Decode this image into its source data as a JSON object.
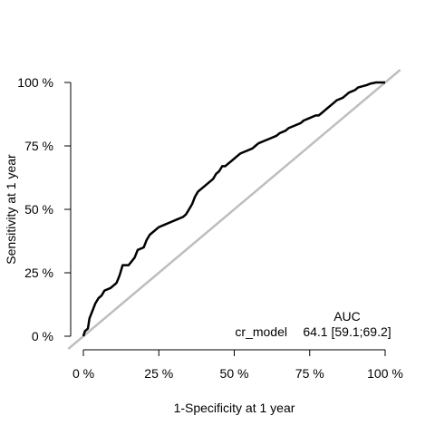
{
  "chart_data": {
    "type": "line",
    "title": "",
    "xlabel": "1-Specificity at 1 year",
    "ylabel": "Sensitivity at 1 year",
    "xlim": [
      0,
      100
    ],
    "ylim": [
      0,
      100
    ],
    "x_ticks": [
      0,
      25,
      50,
      75,
      100
    ],
    "y_ticks": [
      0,
      25,
      50,
      75,
      100
    ],
    "x_tick_labels": [
      "0 %",
      "25 %",
      "50 %",
      "75 %",
      "100 %"
    ],
    "y_tick_labels": [
      "0 %",
      "25 %",
      "50 %",
      "75 %",
      "100 %"
    ],
    "grid": false,
    "reference_line": {
      "x": [
        -5,
        105
      ],
      "y": [
        -5,
        105
      ],
      "color": "#bebebe"
    },
    "series": [
      {
        "name": "cr_model",
        "color": "#000000",
        "x": [
          0,
          0.5,
          1.5,
          2,
          3,
          4,
          5,
          6,
          7,
          9,
          11,
          12,
          13,
          15,
          17,
          18,
          20,
          21,
          22,
          25,
          27,
          29,
          31,
          33,
          34,
          35,
          36,
          37,
          38,
          40,
          42,
          43,
          44,
          45,
          46,
          47,
          48,
          49,
          50,
          51,
          52,
          54,
          56,
          57,
          58,
          60,
          62,
          64,
          65,
          67,
          68,
          70,
          72,
          73,
          75,
          77,
          78,
          79,
          80,
          81,
          82,
          83,
          84,
          86,
          88,
          90,
          91,
          94,
          95,
          97,
          100
        ],
        "y": [
          0,
          2,
          3,
          7,
          10,
          13,
          15,
          16,
          18,
          19,
          21,
          24,
          28,
          28,
          31,
          34,
          35,
          38,
          40,
          43,
          44,
          45,
          46,
          47,
          48,
          50,
          52,
          55,
          57,
          59,
          61,
          62,
          64,
          65,
          67,
          67,
          68,
          69,
          70,
          71,
          72,
          73,
          74,
          75,
          76,
          77,
          78,
          79,
          80,
          81,
          82,
          83,
          84,
          85,
          86,
          87,
          87,
          88,
          89,
          90,
          91,
          92,
          93,
          94,
          96,
          97,
          98,
          99,
          99.5,
          100,
          100
        ]
      }
    ],
    "auc_table": {
      "header": "AUC",
      "rows": [
        {
          "label": "cr_model",
          "value": "64.1 [59.1;69.2]"
        }
      ]
    },
    "legend_position": "bottom-right"
  }
}
